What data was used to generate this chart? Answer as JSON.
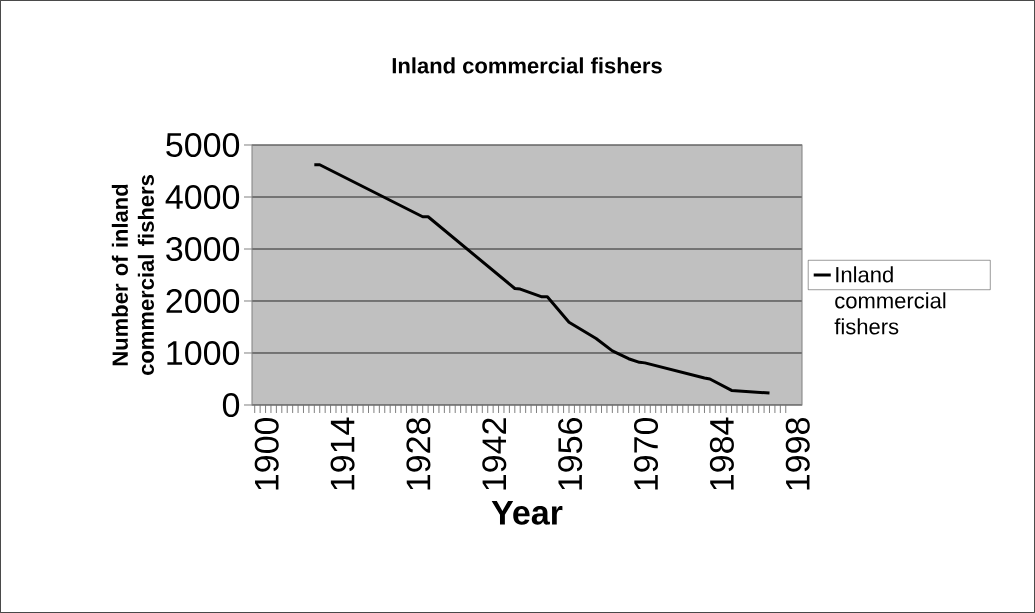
{
  "chart_data": {
    "type": "line",
    "title": "Inland commercial fishers",
    "xlabel": "Year",
    "ylabel": "Number of inland commercial fishers",
    "series": [
      {
        "name": "Inland commercial fishers",
        "color": "#000000",
        "x": [
          1911,
          1912,
          1931,
          1932,
          1948,
          1949,
          1953,
          1954,
          1958,
          1963,
          1966,
          1969,
          1971,
          1972,
          1983,
          1984,
          1988,
          1995
        ],
        "values": [
          4620,
          4620,
          3620,
          3620,
          2240,
          2230,
          2080,
          2080,
          1590,
          1280,
          1040,
          890,
          820,
          810,
          520,
          500,
          280,
          230
        ]
      }
    ],
    "xlim": [
      1899.5,
      2001
    ],
    "xticks": [
      1900,
      1914,
      1928,
      1942,
      1956,
      1970,
      1984,
      1998
    ],
    "ylim": [
      0,
      5000
    ],
    "yticks": [
      0,
      1000,
      2000,
      3000,
      4000,
      5000
    ],
    "grid": "y",
    "legend": "right",
    "marker": "none",
    "line_style": "solid"
  }
}
